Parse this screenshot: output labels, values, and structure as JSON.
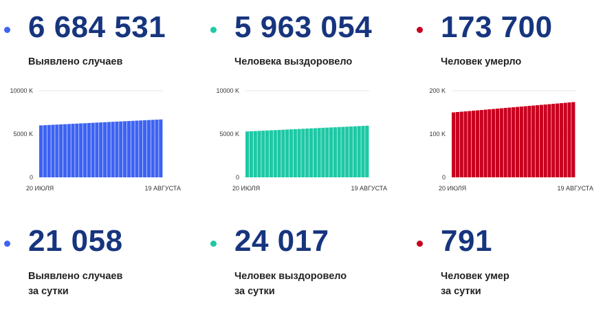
{
  "colors": {
    "blue": "#3d63f2",
    "green": "#1ec8a5",
    "red": "#c8001e",
    "number": "#17357e"
  },
  "top_stats": [
    {
      "value": "6 684 531",
      "label": "Выявлено случаев",
      "color": "#3d63f2"
    },
    {
      "value": "5 963 054",
      "label": "Человека выздоровело",
      "color": "#1ec8a5"
    },
    {
      "value": "173 700",
      "label": "Человек умерло",
      "color": "#c8001e"
    }
  ],
  "bottom_stats": [
    {
      "value": "21 058",
      "label_line1": "Выявлено случаев",
      "label_line2": "за сутки",
      "color": "#3d63f2"
    },
    {
      "value": "24 017",
      "label_line1": "Человек выздоровело",
      "label_line2": "за сутки",
      "color": "#1ec8a5"
    },
    {
      "value": "791",
      "label_line1": "Человек умер",
      "label_line2": "за сутки",
      "color": "#c8001e"
    }
  ],
  "chart_data": [
    {
      "type": "bar",
      "ylim": [
        0,
        10000
      ],
      "y_ticks": [
        "0",
        "5000 K",
        "10000 K"
      ],
      "y_tick_values": [
        0,
        5000,
        10000
      ],
      "x_start_label": "20 ИЮЛЯ",
      "x_end_label": "19 АВГУСТА",
      "color": "#3d63f2",
      "start_value": 6000,
      "end_value": 6685,
      "bar_count": 31
    },
    {
      "type": "bar",
      "ylim": [
        0,
        10000
      ],
      "y_ticks": [
        "0",
        "5000 K",
        "10000 K"
      ],
      "y_tick_values": [
        0,
        5000,
        10000
      ],
      "x_start_label": "20 ИЮЛЯ",
      "x_end_label": "19 АВГУСТА",
      "color": "#1ec8a5",
      "start_value": 5300,
      "end_value": 5963,
      "bar_count": 31
    },
    {
      "type": "bar",
      "ylim": [
        0,
        200
      ],
      "y_ticks": [
        "0",
        "100 K",
        "200 K"
      ],
      "y_tick_values": [
        0,
        100,
        200
      ],
      "x_start_label": "20 ИЮЛЯ",
      "x_end_label": "19 АВГУСТА",
      "color": "#c8001e",
      "start_value": 150,
      "end_value": 173.7,
      "bar_count": 31
    }
  ]
}
